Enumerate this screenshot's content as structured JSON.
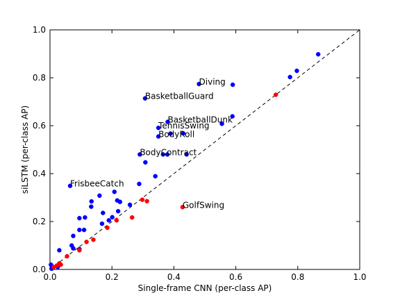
{
  "chart_data": {
    "type": "scatter",
    "xlabel": "Single-frame CNN (per-class AP)",
    "ylabel": "siLSTM (per-class AP)",
    "xlim": [
      0.0,
      1.0
    ],
    "ylim": [
      0.0,
      1.0
    ],
    "xticks": [
      "0.0",
      "0.2",
      "0.4",
      "0.6",
      "0.8",
      "1.0"
    ],
    "yticks": [
      "0.0",
      "0.2",
      "0.4",
      "0.6",
      "0.8",
      "1.0"
    ],
    "grid": false,
    "reference_line": {
      "style": "dashed",
      "from": [
        0,
        0
      ],
      "to": [
        1,
        1
      ],
      "color": "#000000"
    },
    "colors": {
      "above_diagonal": "#0000ff",
      "below_diagonal": "#ff0000"
    },
    "series": [
      {
        "color": "#0000ff",
        "points": [
          [
            0.866,
            0.898
          ],
          [
            0.797,
            0.829
          ],
          [
            0.775,
            0.803
          ],
          [
            0.59,
            0.771
          ],
          [
            0.481,
            0.774
          ],
          [
            0.307,
            0.714
          ],
          [
            0.589,
            0.639
          ],
          [
            0.555,
            0.608
          ],
          [
            0.38,
            0.616
          ],
          [
            0.389,
            0.567
          ],
          [
            0.43,
            0.568
          ],
          [
            0.35,
            0.591
          ],
          [
            0.35,
            0.555
          ],
          [
            0.29,
            0.48
          ],
          [
            0.365,
            0.48
          ],
          [
            0.379,
            0.48
          ],
          [
            0.441,
            0.48
          ],
          [
            0.308,
            0.447
          ],
          [
            0.34,
            0.389
          ],
          [
            0.288,
            0.357
          ],
          [
            0.065,
            0.349
          ],
          [
            0.208,
            0.324
          ],
          [
            0.16,
            0.308
          ],
          [
            0.134,
            0.284
          ],
          [
            0.217,
            0.288
          ],
          [
            0.226,
            0.282
          ],
          [
            0.133,
            0.262
          ],
          [
            0.258,
            0.27
          ],
          [
            0.171,
            0.236
          ],
          [
            0.22,
            0.243
          ],
          [
            0.113,
            0.217
          ],
          [
            0.095,
            0.214
          ],
          [
            0.19,
            0.205
          ],
          [
            0.168,
            0.191
          ],
          [
            0.201,
            0.218
          ],
          [
            0.11,
            0.165
          ],
          [
            0.095,
            0.165
          ],
          [
            0.075,
            0.14
          ],
          [
            0.07,
            0.1
          ],
          [
            0.075,
            0.088
          ],
          [
            0.095,
            0.085
          ],
          [
            0.03,
            0.08
          ],
          [
            0.003,
            0.02
          ],
          [
            0.01,
            0.01
          ],
          [
            0.025,
            0.01
          ],
          [
            0.005,
            0.003
          ]
        ]
      },
      {
        "color": "#ff0000",
        "points": [
          [
            0.729,
            0.729
          ],
          [
            0.428,
            0.26
          ],
          [
            0.298,
            0.291
          ],
          [
            0.313,
            0.285
          ],
          [
            0.265,
            0.217
          ],
          [
            0.215,
            0.205
          ],
          [
            0.185,
            0.174
          ],
          [
            0.14,
            0.124
          ],
          [
            0.118,
            0.115
          ],
          [
            0.095,
            0.08
          ],
          [
            0.055,
            0.055
          ],
          [
            0.03,
            0.025
          ],
          [
            0.022,
            0.016
          ],
          [
            0.012,
            0.01
          ],
          [
            0.035,
            0.02
          ]
        ]
      }
    ],
    "annotations": [
      {
        "text": "Diving",
        "x": 0.481,
        "y": 0.774
      },
      {
        "text": "BasketballGuard",
        "x": 0.307,
        "y": 0.714
      },
      {
        "text": "BasketballDunk",
        "x": 0.38,
        "y": 0.616
      },
      {
        "text": "TennisSwing",
        "x": 0.35,
        "y": 0.591
      },
      {
        "text": "BodyRoll",
        "x": 0.35,
        "y": 0.555
      },
      {
        "text": "BodyContract",
        "x": 0.29,
        "y": 0.48
      },
      {
        "text": "FrisbeeCatch",
        "x": 0.065,
        "y": 0.349
      },
      {
        "text": "GolfSwing",
        "x": 0.428,
        "y": 0.26
      }
    ]
  }
}
